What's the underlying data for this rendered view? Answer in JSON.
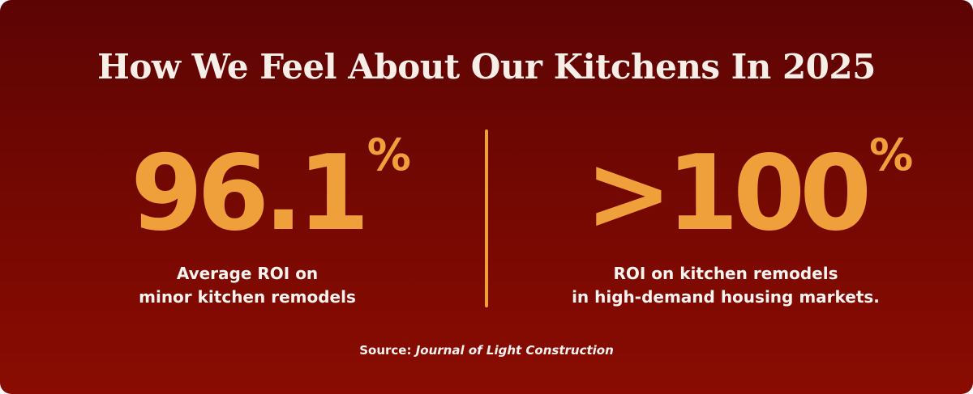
{
  "title": "How We Feel About Our Kitchens In 2025",
  "stats": [
    {
      "value": "96.1",
      "unit": "%",
      "label_lines": [
        "Average ROI on",
        "minor kitchen remodels"
      ]
    },
    {
      "value": ">100",
      "unit": "%",
      "label_lines": [
        "ROI on kitchen remodels",
        "in high-demand housing markets."
      ]
    }
  ],
  "source": {
    "label": "Source:",
    "publication": "Journal of Light Construction"
  }
}
